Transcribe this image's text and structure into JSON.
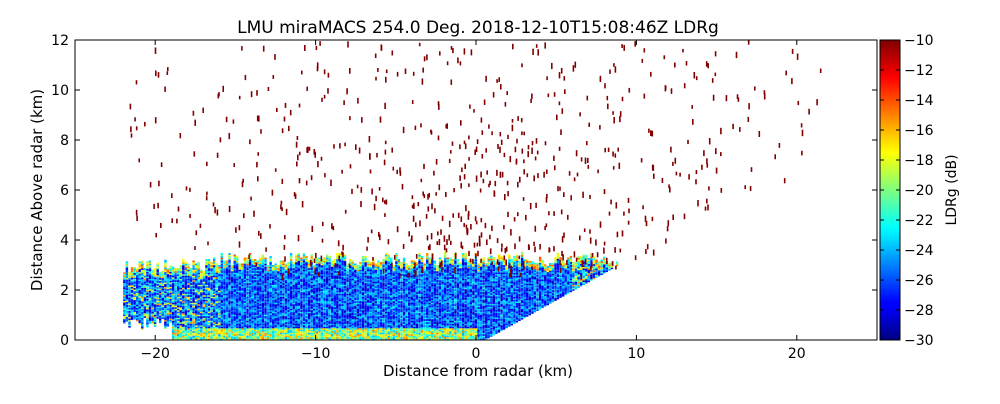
{
  "chart_data": {
    "type": "heatmap",
    "title": "LMU miraMACS 254.0 Deg. 2018-12-10T15:08:46Z  LDRg",
    "xlabel": "Distance from radar (km)",
    "ylabel": "Distance Above radar  (km)",
    "xlim": [
      -25,
      25
    ],
    "ylim": [
      0,
      12
    ],
    "x_ticks": [
      -20,
      -10,
      0,
      10,
      20
    ],
    "x_tick_labels": [
      "−20",
      "−10",
      "0",
      "10",
      "20"
    ],
    "y_ticks": [
      0,
      2,
      4,
      6,
      8,
      10,
      12
    ],
    "y_tick_labels": [
      "0",
      "2",
      "4",
      "6",
      "8",
      "10",
      "12"
    ],
    "colorbar": {
      "label": "LDRg (dB)",
      "range": [
        -30,
        -10
      ],
      "ticks": [
        -30,
        -28,
        -26,
        -24,
        -22,
        -20,
        -18,
        -16,
        -14,
        -12,
        -10
      ],
      "tick_labels": [
        "−30",
        "−28",
        "−26",
        "−24",
        "−22",
        "−20",
        "−18",
        "−16",
        "−14",
        "−12",
        "−10"
      ],
      "colormap": "jet"
    },
    "scan": {
      "azimuth_deg": 254.0,
      "timestamp": "2018-12-10T15:08:46Z",
      "cloud_layer_top_km": 3.2,
      "cloud_x_range_km": [
        -22,
        11
      ],
      "noise_ldr_db": -10
    }
  },
  "colors": {
    "axis": "#000000",
    "background": "#ffffff"
  }
}
